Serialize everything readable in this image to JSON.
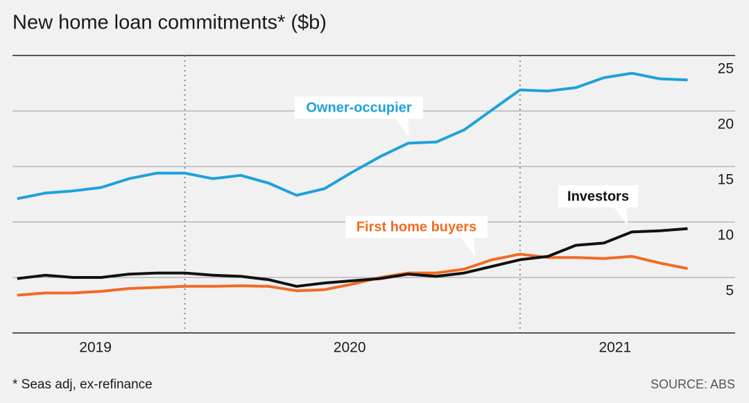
{
  "chart_data": {
    "type": "line",
    "title": "New home loan commitments* ($b)",
    "footnote": "* Seas adj, ex-refinance",
    "source": "SOURCE: ABS",
    "x": [
      0,
      1,
      2,
      3,
      4,
      5,
      6,
      7,
      8,
      9,
      10,
      11,
      12,
      13,
      14,
      15,
      16,
      17,
      18,
      19,
      20,
      21,
      22,
      23,
      24
    ],
    "xlim": [
      -0.17,
      25.7
    ],
    "xticks": [
      {
        "value": 2.8,
        "label": "2019"
      },
      {
        "value": 11.9,
        "label": "2020"
      },
      {
        "value": 21.4,
        "label": "2021"
      }
    ],
    "dotted_lines": [
      6,
      18
    ],
    "ylim": [
      0,
      25
    ],
    "yticks": [
      5,
      10,
      15,
      20,
      25
    ],
    "grid": true,
    "series": [
      {
        "name": "Owner-occupier",
        "color": "#1ea1dc",
        "values": [
          12.1,
          12.6,
          12.8,
          13.1,
          13.9,
          14.4,
          14.4,
          13.9,
          14.2,
          13.5,
          12.4,
          13.0,
          14.5,
          15.9,
          17.1,
          17.2,
          18.3,
          20.1,
          21.9,
          21.8,
          22.1,
          23.0,
          23.4,
          22.9,
          22.8
        ]
      },
      {
        "name": "First home buyers",
        "color": "#f26a22",
        "values": [
          3.4,
          3.6,
          3.6,
          3.75,
          4.0,
          4.1,
          4.2,
          4.2,
          4.25,
          4.2,
          3.8,
          3.9,
          4.4,
          5.0,
          5.4,
          5.4,
          5.75,
          6.6,
          7.1,
          6.8,
          6.8,
          6.7,
          6.9,
          6.3,
          5.8
        ]
      },
      {
        "name": "Investors",
        "color": "#111111",
        "values": [
          4.9,
          5.2,
          5.0,
          5.0,
          5.3,
          5.4,
          5.4,
          5.2,
          5.1,
          4.8,
          4.2,
          4.5,
          4.7,
          4.9,
          5.3,
          5.1,
          5.4,
          6.0,
          6.6,
          6.9,
          7.9,
          8.1,
          9.1,
          9.2,
          9.4
        ]
      }
    ]
  }
}
